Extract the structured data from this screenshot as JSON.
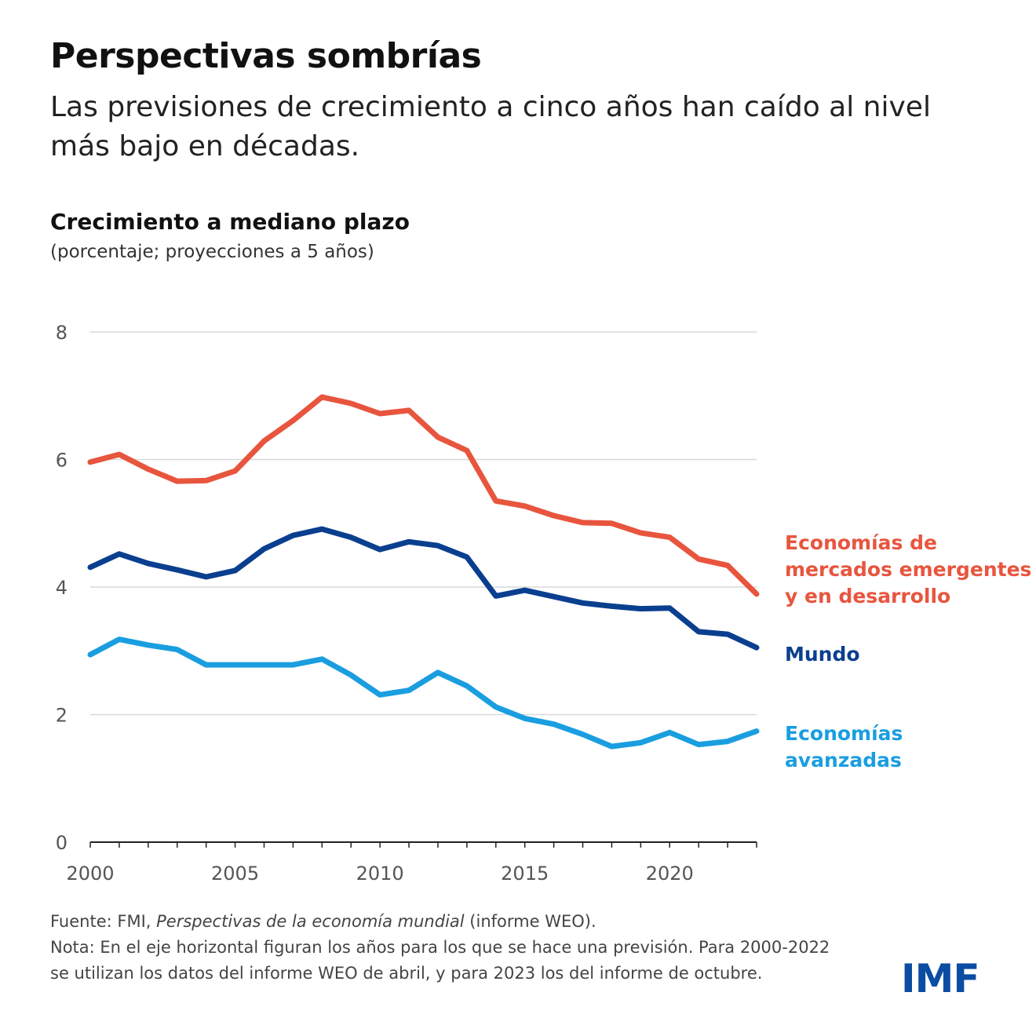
{
  "title": "Perspectivas sombrías",
  "subtitle": "Las previsiones de crecimiento a cinco años han caído al nivel más bajo en décadas.",
  "logo": "IMF",
  "footer": {
    "source_prefix": "Fuente: FMI, ",
    "source_italic": "Perspectivas de la economía mundial",
    "source_suffix": " (informe WEO).",
    "note_line1": "Nota: En el eje horizontal figuran los años para los que se hace una previsión. Para 2000-2022",
    "note_line2": "se utilizan los datos del informe WEO de abril, y para 2023 los del informe de octubre."
  },
  "chart_data": {
    "type": "line",
    "title": "Crecimiento a mediano plazo",
    "subtitle": "(porcentaje; proyecciones a 5 años)",
    "xlabel": "",
    "ylabel": "",
    "xlim": [
      2000,
      2023
    ],
    "ylim": [
      0,
      8
    ],
    "x_ticks": [
      "2000",
      "2005",
      "2010",
      "2015",
      "2020"
    ],
    "y_ticks": [
      "0",
      "2",
      "4",
      "6",
      "8"
    ],
    "grid": "horizontal",
    "legend": "right, inline labels",
    "x": [
      2000,
      2001,
      2002,
      2003,
      2004,
      2005,
      2006,
      2007,
      2008,
      2009,
      2010,
      2011,
      2012,
      2013,
      2014,
      2015,
      2016,
      2017,
      2018,
      2019,
      2020,
      2021,
      2022,
      2023
    ],
    "series": [
      {
        "name": "Economías de mercados emergentes y en desarrollo",
        "label_lines": [
          "Economías de",
          "mercados emergentes",
          "y en desarrollo"
        ],
        "color": "#e8553e",
        "values": [
          5.96,
          6.08,
          5.85,
          5.66,
          5.67,
          5.82,
          6.29,
          6.61,
          6.98,
          6.88,
          6.72,
          6.77,
          6.35,
          6.14,
          5.35,
          5.27,
          5.12,
          5.01,
          5.0,
          4.85,
          4.78,
          4.44,
          4.34,
          3.89
        ]
      },
      {
        "name": "Mundo",
        "label_lines": [
          "Mundo"
        ],
        "color": "#0a3f8f",
        "values": [
          4.31,
          4.52,
          4.37,
          4.27,
          4.16,
          4.26,
          4.6,
          4.81,
          4.91,
          4.78,
          4.59,
          4.71,
          4.65,
          4.47,
          3.86,
          3.95,
          3.85,
          3.75,
          3.7,
          3.66,
          3.67,
          3.3,
          3.26,
          3.05
        ]
      },
      {
        "name": "Economías avanzadas",
        "label_lines": [
          "Economías",
          "avanzadas"
        ],
        "color": "#1a9ee0",
        "values": [
          2.94,
          3.18,
          3.09,
          3.02,
          2.78,
          2.78,
          2.78,
          2.78,
          2.87,
          2.62,
          2.31,
          2.38,
          2.66,
          2.45,
          2.12,
          1.94,
          1.85,
          1.69,
          1.5,
          1.56,
          1.72,
          1.53,
          1.58,
          1.74
        ]
      }
    ]
  }
}
